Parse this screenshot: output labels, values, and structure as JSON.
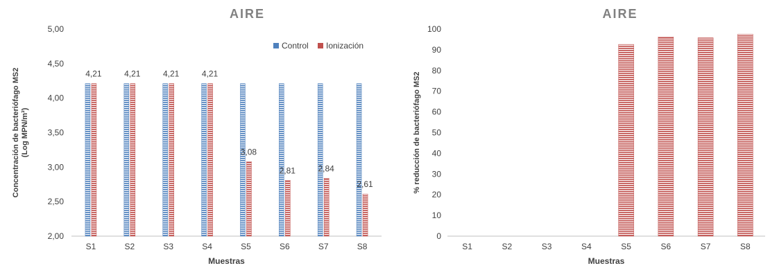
{
  "colors": {
    "control": "#4f81bd",
    "ionizacion": "#c0504d",
    "axis": "#bfbfbf",
    "text": "#404040",
    "title": "#808080"
  },
  "chart_data": [
    {
      "type": "bar",
      "title": "AIRE",
      "xlabel": "Muestras",
      "ylabel_line1": "Concentración de bacteriófago MS2",
      "ylabel_line2": "(Log MPN/m³)",
      "categories": [
        "S1",
        "S2",
        "S3",
        "S4",
        "S5",
        "S6",
        "S7",
        "S8"
      ],
      "ylim": [
        2.0,
        5.0
      ],
      "yticks": [
        "2,00",
        "2,50",
        "3,00",
        "3,50",
        "4,00",
        "4,50",
        "5,00"
      ],
      "grid": false,
      "legend_position": "top-right",
      "series": [
        {
          "name": "Control",
          "values": [
            4.21,
            4.21,
            4.21,
            4.21,
            4.21,
            4.21,
            4.21,
            4.21
          ],
          "labels": [
            "",
            "",
            "",
            "",
            "",
            "",
            "",
            ""
          ]
        },
        {
          "name": "Ionización",
          "values": [
            4.21,
            4.21,
            4.21,
            4.21,
            3.08,
            2.81,
            2.84,
            2.61
          ],
          "labels": [
            "4,21",
            "4,21",
            "4,21",
            "4,21",
            "3,08",
            "2,81",
            "2,84",
            "2,61"
          ]
        }
      ]
    },
    {
      "type": "bar",
      "title": "AIRE",
      "xlabel": "Muestras",
      "ylabel_line1": "% reducción de bacteriófago MS2",
      "ylabel_line2": "",
      "categories": [
        "S1",
        "S2",
        "S3",
        "S4",
        "S5",
        "S6",
        "S7",
        "S8"
      ],
      "ylim": [
        0,
        100
      ],
      "yticks": [
        "0",
        "10",
        "20",
        "30",
        "40",
        "50",
        "60",
        "70",
        "80",
        "90",
        "100"
      ],
      "grid": false,
      "legend_position": "none",
      "series": [
        {
          "values": [
            0,
            0,
            0,
            0,
            92.6,
            96.2,
            95.8,
            97.5
          ]
        }
      ]
    }
  ]
}
